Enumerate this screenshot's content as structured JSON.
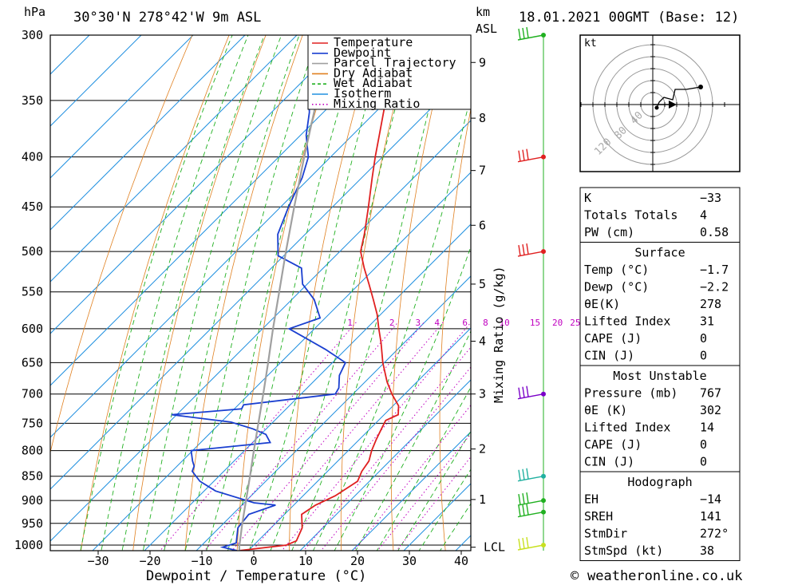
{
  "header": {
    "location": "30°30'N 278°42'W 9m ASL",
    "datetime": "18.01.2021 00GMT (Base: 12)",
    "pressure_unit": "hPa",
    "height_unit_1": "km",
    "height_unit_2": "ASL"
  },
  "legend": {
    "items": [
      {
        "label": "Temperature",
        "color": "#e02020",
        "style": "solid"
      },
      {
        "label": "Dewpoint",
        "color": "#1a3fd0",
        "style": "solid"
      },
      {
        "label": "Parcel Trajectory",
        "color": "#a0a0a0",
        "style": "solid"
      },
      {
        "label": "Dry Adiabat",
        "color": "#e08020",
        "style": "solid"
      },
      {
        "label": "Wet Adiabat",
        "color": "#20b020",
        "style": "dashed"
      },
      {
        "label": "Isotherm",
        "color": "#2090e0",
        "style": "solid"
      },
      {
        "label": "Mixing Ratio",
        "color": "#c000c0",
        "style": "dotted"
      }
    ]
  },
  "chart_data": {
    "type": "line",
    "xlabel": "Dewpoint / Temperature (°C)",
    "ylabel": "hPa",
    "xlim": [
      -40,
      40
    ],
    "x_ticks": [
      -30,
      -20,
      -10,
      0,
      10,
      20,
      30,
      40
    ],
    "pressure_levels": [
      300,
      350,
      400,
      450,
      500,
      550,
      600,
      650,
      700,
      750,
      800,
      850,
      900,
      950,
      1000
    ],
    "height_axis_label": "km ASL",
    "height_ticks": [
      {
        "label": "9",
        "p": 320
      },
      {
        "label": "8",
        "p": 365
      },
      {
        "label": "7",
        "p": 413
      },
      {
        "label": "6",
        "p": 470
      },
      {
        "label": "5",
        "p": 540
      },
      {
        "label": "4",
        "p": 618
      },
      {
        "label": "3",
        "p": 700
      },
      {
        "label": "2",
        "p": 797
      },
      {
        "label": "1",
        "p": 898
      },
      {
        "label": "LCL",
        "p": 1005
      }
    ],
    "mixing_ratio_axis_label": "Mixing Ratio (g/kg)",
    "mixing_ratio_labels": [
      "1",
      "2",
      "3",
      "4",
      "6",
      "8",
      "10",
      "15",
      "20",
      "25"
    ],
    "series": [
      {
        "name": "Temperature",
        "color": "#e02020",
        "points": [
          [
            1013,
            -1.7
          ],
          [
            1000,
            6.3
          ],
          [
            990,
            7.4
          ],
          [
            960,
            6.0
          ],
          [
            930,
            3.3
          ],
          [
            910,
            4.2
          ],
          [
            890,
            6.2
          ],
          [
            860,
            7.7
          ],
          [
            840,
            6.6
          ],
          [
            820,
            6.0
          ],
          [
            800,
            4.5
          ],
          [
            780,
            3.3
          ],
          [
            760,
            2.2
          ],
          [
            745,
            1.4
          ],
          [
            735,
            2.7
          ],
          [
            720,
            1.1
          ],
          [
            700,
            -2.5
          ],
          [
            680,
            -5.8
          ],
          [
            650,
            -10.3
          ],
          [
            620,
            -14.5
          ],
          [
            600,
            -17.6
          ],
          [
            580,
            -20.7
          ],
          [
            560,
            -24.3
          ],
          [
            540,
            -28.1
          ],
          [
            520,
            -32.1
          ],
          [
            500,
            -36.0
          ],
          [
            480,
            -38.6
          ],
          [
            450,
            -43.1
          ],
          [
            420,
            -48.0
          ],
          [
            400,
            -51.4
          ],
          [
            380,
            -54.8
          ],
          [
            360,
            -58.4
          ],
          [
            340,
            -62.2
          ],
          [
            320,
            -65.7
          ],
          [
            310,
            -67.6
          ],
          [
            300,
            -69.2
          ]
        ]
      },
      {
        "name": "Dewpoint",
        "color": "#1a3fd0",
        "points": [
          [
            1013,
            -2.2
          ],
          [
            1005,
            -5.6
          ],
          [
            995,
            -3.8
          ],
          [
            960,
            -6.4
          ],
          [
            930,
            -6.9
          ],
          [
            910,
            -3.5
          ],
          [
            905,
            -8.1
          ],
          [
            880,
            -17.8
          ],
          [
            860,
            -22.7
          ],
          [
            840,
            -26.1
          ],
          [
            830,
            -26.7
          ],
          [
            820,
            -28.0
          ],
          [
            800,
            -30.3
          ],
          [
            785,
            -16.6
          ],
          [
            770,
            -19.0
          ],
          [
            760,
            -22.6
          ],
          [
            748,
            -28.1
          ],
          [
            735,
            -41.0
          ],
          [
            725,
            -28.6
          ],
          [
            718,
            -29.0
          ],
          [
            700,
            -13.4
          ],
          [
            690,
            -13.9
          ],
          [
            670,
            -16.2
          ],
          [
            650,
            -17.5
          ],
          [
            630,
            -23.9
          ],
          [
            600,
            -34.9
          ],
          [
            585,
            -31.0
          ],
          [
            560,
            -35.7
          ],
          [
            540,
            -40.9
          ],
          [
            520,
            -44.2
          ],
          [
            505,
            -51.1
          ],
          [
            480,
            -55.3
          ],
          [
            450,
            -58.5
          ],
          [
            420,
            -61.5
          ],
          [
            400,
            -64.3
          ],
          [
            380,
            -68.9
          ],
          [
            360,
            -72.7
          ],
          [
            340,
            -77.5
          ],
          [
            330,
            -79.1
          ],
          [
            320,
            -69.8
          ],
          [
            315,
            -78.5
          ],
          [
            310,
            -78.5
          ],
          [
            305,
            -78.5
          ],
          [
            300,
            -80.1
          ]
        ]
      },
      {
        "name": "Parcel Trajectory",
        "color": "#a0a0a0",
        "points": [
          [
            1013,
            -1.7
          ],
          [
            1005,
            -2.4
          ],
          [
            950,
            -6.4
          ],
          [
            900,
            -10.1
          ],
          [
            850,
            -14.0
          ],
          [
            800,
            -18.2
          ],
          [
            750,
            -22.6
          ],
          [
            700,
            -27.3
          ],
          [
            650,
            -32.4
          ],
          [
            600,
            -38.0
          ],
          [
            550,
            -43.9
          ],
          [
            500,
            -50.4
          ],
          [
            450,
            -57.4
          ],
          [
            400,
            -65.1
          ],
          [
            350,
            -73.6
          ],
          [
            300,
            -82.9
          ]
        ]
      }
    ]
  },
  "hodograph": {
    "unit_label": "kt",
    "ring_labels": [
      "40",
      "80",
      "120"
    ]
  },
  "wind_barbs": [
    {
      "p": 300,
      "color": "#20b020"
    },
    {
      "p": 400,
      "color": "#e02020"
    },
    {
      "p": 500,
      "color": "#e02020"
    },
    {
      "p": 700,
      "color": "#7a00c8"
    },
    {
      "p": 850,
      "color": "#20b0a0"
    },
    {
      "p": 900,
      "color": "#20b020"
    },
    {
      "p": 925,
      "color": "#20b020"
    },
    {
      "p": 1000,
      "color": "#c8e020"
    }
  ],
  "indices": {
    "rows": [
      {
        "label": "K",
        "value": "-33"
      },
      {
        "label": "Totals Totals",
        "value": "4"
      },
      {
        "label": "PW (cm)",
        "value": "0.58"
      }
    ],
    "surface": {
      "title": "Surface",
      "rows": [
        {
          "label": "Temp (°C)",
          "value": "-1.7"
        },
        {
          "label": "Dewp (°C)",
          "value": "-2.2"
        },
        {
          "label": "θE(K)",
          "value": "278"
        },
        {
          "label": "Lifted Index",
          "value": "31"
        },
        {
          "label": "CAPE (J)",
          "value": "0"
        },
        {
          "label": "CIN (J)",
          "value": "0"
        }
      ]
    },
    "most_unstable": {
      "title": "Most Unstable",
      "rows": [
        {
          "label": "Pressure (mb)",
          "value": "767"
        },
        {
          "label": "θE (K)",
          "value": "302"
        },
        {
          "label": "Lifted Index",
          "value": "14"
        },
        {
          "label": "CAPE (J)",
          "value": "0"
        },
        {
          "label": "CIN (J)",
          "value": "0"
        }
      ]
    },
    "hodograph_stats": {
      "title": "Hodograph",
      "rows": [
        {
          "label": "EH",
          "value": "-14"
        },
        {
          "label": "SREH",
          "value": "141"
        },
        {
          "label": "StmDir",
          "value": "272°"
        },
        {
          "label": "StmSpd (kt)",
          "value": "38"
        }
      ]
    }
  },
  "footer": {
    "copyright_symbol": "©",
    "site": "weatheronline.co.uk"
  }
}
